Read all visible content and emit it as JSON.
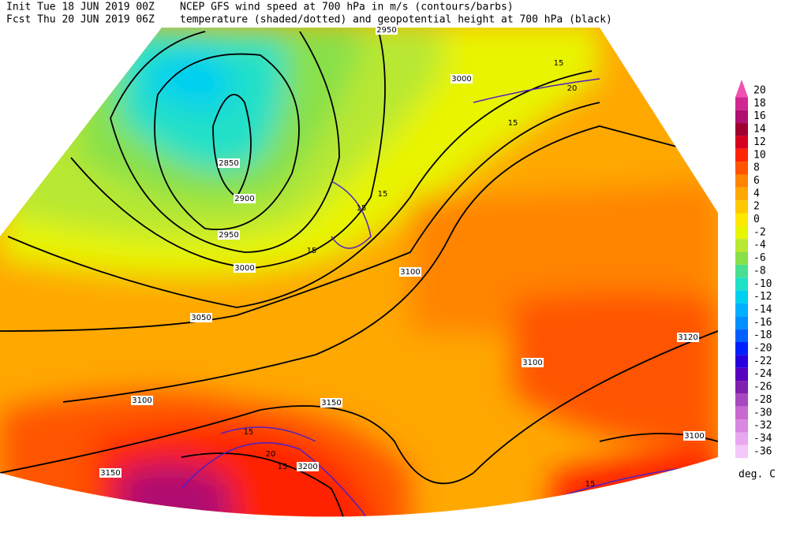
{
  "header": {
    "init": "Init  Tue 18 JUN 2019 00Z",
    "fcst": "Fcst Thu 20 JUN 2019 06Z",
    "line1": "NCEP GFS wind speed at 700 hPa in m/s (contours/barbs)",
    "line2": "temperature (shaded/dotted) and geopotential height at 700 hPa (black)"
  },
  "colorbar": {
    "labels": [
      "20",
      "18",
      "16",
      "14",
      "12",
      "10",
      "8",
      "6",
      "4",
      "2",
      "0",
      "-2",
      "-4",
      "-6",
      "-8",
      "-10",
      "-12",
      "-14",
      "-16",
      "-18",
      "-20",
      "-22",
      "-24",
      "-26",
      "-28",
      "-30",
      "-32",
      "-34",
      "-36"
    ],
    "colors": [
      "#f050b0",
      "#d02890",
      "#b01070",
      "#a00030",
      "#d80020",
      "#ff2400",
      "#ff5400",
      "#ff8400",
      "#ffa800",
      "#ffc800",
      "#ffe800",
      "#e8f400",
      "#b8e830",
      "#88e048",
      "#48e090",
      "#20e0c8",
      "#00d0f0",
      "#00b0ff",
      "#0090ff",
      "#0060ff",
      "#0020ff",
      "#2800e0",
      "#5800c0",
      "#8020b0",
      "#a848c0",
      "#c868d0",
      "#d888e0",
      "#e8a8f0",
      "#f4c8f8"
    ],
    "unit": "deg. C"
  },
  "contour_labels": [
    "2950",
    "3000",
    "2850",
    "2900",
    "2950",
    "3000",
    "3050",
    "3100",
    "3100",
    "3150",
    "3200",
    "3150",
    "3100",
    "3120",
    "3100"
  ],
  "wind_labels": [
    "15",
    "20",
    "15",
    "15",
    "15",
    "15",
    "20",
    "15",
    "15",
    "15"
  ]
}
